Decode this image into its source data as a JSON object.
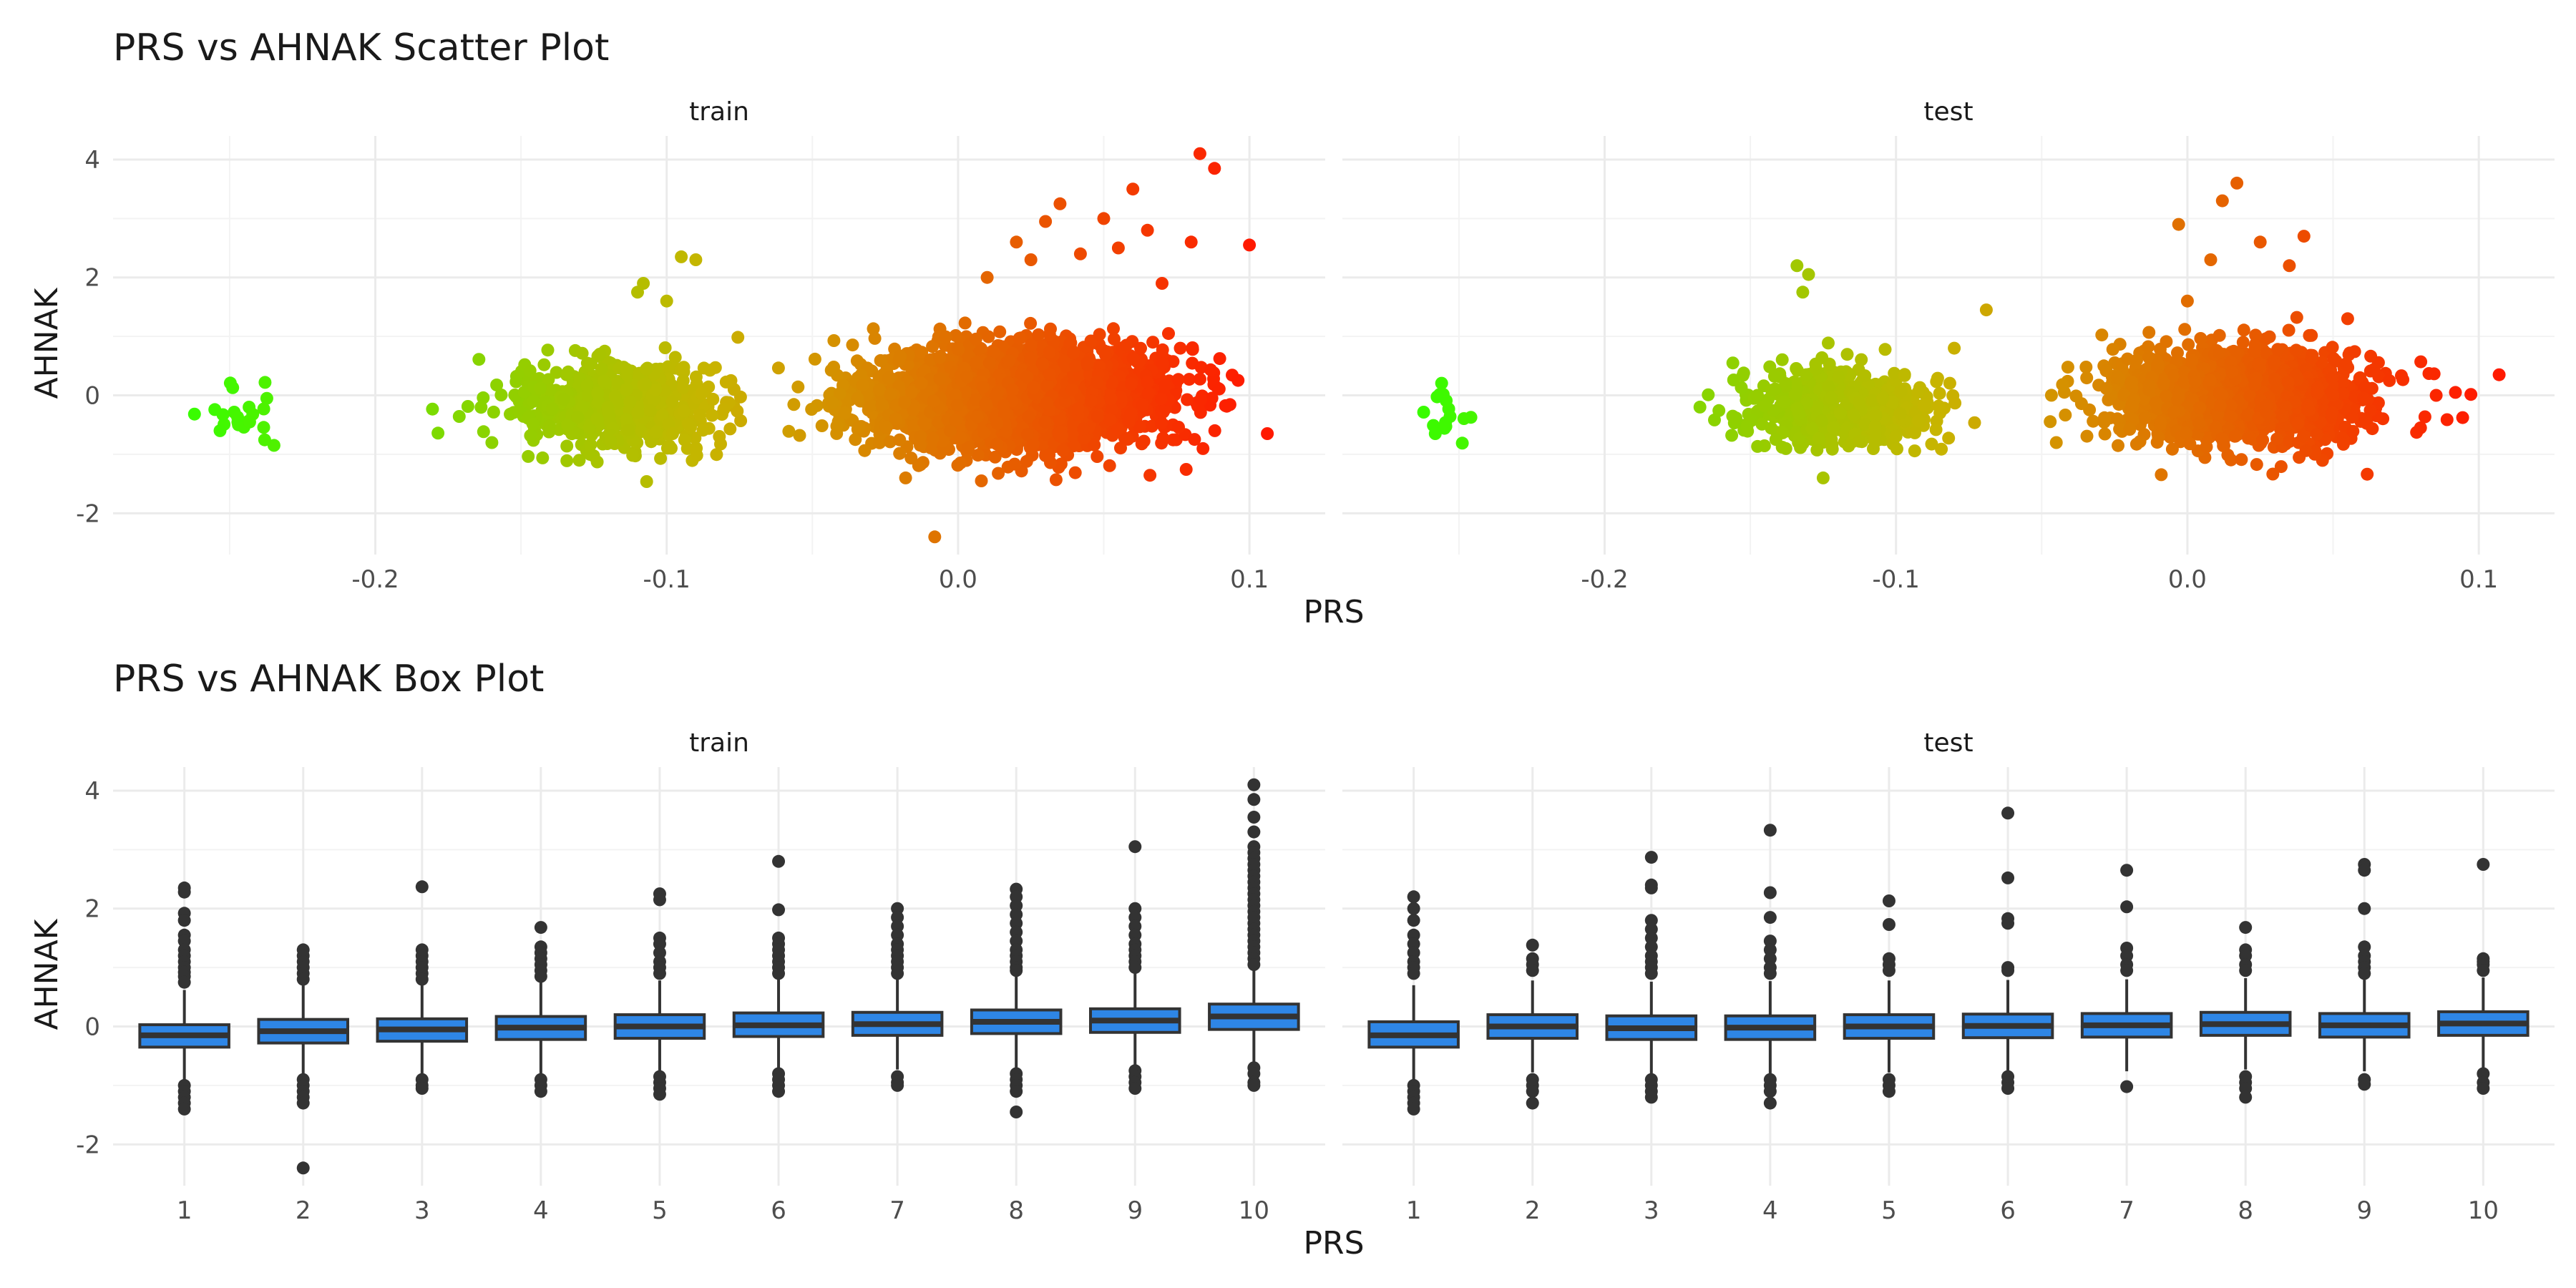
{
  "chart_data": [
    {
      "type": "scatter",
      "title": "PRS vs AHNAK Scatter Plot",
      "xlabel": "PRS",
      "ylabel": "AHNAK",
      "facets": [
        "train",
        "test"
      ],
      "xlim": [
        -0.29,
        0.126
      ],
      "ylim": [
        -2.7,
        4.4
      ],
      "x_ticks": [
        -0.2,
        -0.1,
        0.0,
        0.1
      ],
      "x_tick_labels": [
        "-0.2",
        "-0.1",
        "0.0",
        "0.1"
      ],
      "y_ticks": [
        -2,
        0,
        2,
        4
      ],
      "y_tick_labels": [
        "-2",
        "0",
        "2",
        "4"
      ],
      "color_scale": {
        "low": "#33ff00",
        "mid": "#c8b400",
        "high": "#ff1a00",
        "domain": [
          -0.27,
          0.1
        ]
      },
      "grid": true,
      "legend": "none",
      "panels": [
        {
          "facet": "train",
          "clusters": [
            {
              "x_center": -0.245,
              "x_spread": 0.008,
              "y_center": -0.25,
              "y_spread": 0.3,
              "n": 22
            },
            {
              "x_center": -0.118,
              "x_spread": 0.018,
              "y_center": -0.2,
              "y_spread": 0.35,
              "n": 700
            },
            {
              "x_center": 0.02,
              "x_spread": 0.025,
              "y_center": 0.0,
              "y_spread": 0.42,
              "n": 2600
            }
          ],
          "outliers": [
            [
              0.083,
              4.1
            ],
            [
              0.088,
              3.85
            ],
            [
              0.1,
              2.55
            ],
            [
              0.06,
              3.5
            ],
            [
              0.035,
              3.25
            ],
            [
              0.05,
              3.0
            ],
            [
              0.03,
              2.95
            ],
            [
              0.065,
              2.8
            ],
            [
              0.08,
              2.6
            ],
            [
              0.055,
              2.5
            ],
            [
              -0.095,
              2.35
            ],
            [
              -0.09,
              2.3
            ],
            [
              -0.108,
              1.9
            ],
            [
              -0.11,
              1.75
            ],
            [
              -0.1,
              1.6
            ],
            [
              0.025,
              2.3
            ],
            [
              0.01,
              2.0
            ],
            [
              -0.008,
              -2.4
            ],
            [
              0.008,
              -1.45
            ],
            [
              -0.018,
              -1.4
            ],
            [
              -0.16,
              -0.8
            ],
            [
              -0.13,
              -1.1
            ],
            [
              0.02,
              2.6
            ],
            [
              0.042,
              2.4
            ],
            [
              0.07,
              1.9
            ]
          ]
        },
        {
          "facet": "test",
          "clusters": [
            {
              "x_center": -0.253,
              "x_spread": 0.007,
              "y_center": -0.4,
              "y_spread": 0.25,
              "n": 16
            },
            {
              "x_center": -0.12,
              "x_spread": 0.017,
              "y_center": -0.2,
              "y_spread": 0.33,
              "n": 520
            },
            {
              "x_center": 0.017,
              "x_spread": 0.022,
              "y_center": 0.0,
              "y_spread": 0.38,
              "n": 1500
            }
          ],
          "outliers": [
            [
              -0.134,
              2.2
            ],
            [
              -0.13,
              2.05
            ],
            [
              -0.132,
              1.75
            ],
            [
              -0.069,
              1.45
            ],
            [
              0.017,
              3.6
            ],
            [
              0.012,
              3.3
            ],
            [
              -0.003,
              2.9
            ],
            [
              0.04,
              2.7
            ],
            [
              0.025,
              2.6
            ],
            [
              0.008,
              2.3
            ],
            [
              0.107,
              0.35
            ],
            [
              0.092,
              0.05
            ],
            [
              0.08,
              -0.55
            ],
            [
              -0.045,
              -0.8
            ],
            [
              -0.125,
              -1.4
            ],
            [
              0.035,
              2.2
            ],
            [
              0.0,
              1.6
            ],
            [
              -0.156,
              0.55
            ],
            [
              0.055,
              1.3
            ],
            [
              -0.08,
              0.8
            ]
          ]
        }
      ]
    },
    {
      "type": "box",
      "title": "PRS vs AHNAK Box Plot",
      "xlabel": "PRS",
      "ylabel": "AHNAK",
      "facets": [
        "train",
        "test"
      ],
      "categories": [
        "1",
        "2",
        "3",
        "4",
        "5",
        "6",
        "7",
        "8",
        "9",
        "10"
      ],
      "ylim": [
        -2.7,
        4.4
      ],
      "y_ticks": [
        -2,
        0,
        2,
        4
      ],
      "y_tick_labels": [
        "-2",
        "0",
        "2",
        "4"
      ],
      "box_fill": "#2e86e6",
      "box_stroke": "#333333",
      "outlier_color": "#333333",
      "grid": true,
      "legend": "none",
      "panels": [
        {
          "facet": "train",
          "boxes": [
            {
              "category": "1",
              "q1": -0.35,
              "median": -0.15,
              "q3": 0.03,
              "whisker_low": -0.95,
              "whisker_high": 0.62,
              "outliers": [
                2.35,
                2.28,
                1.92,
                1.8,
                1.55,
                1.45,
                1.3,
                1.2,
                1.1,
                1.0,
                0.92,
                0.85,
                0.75,
                -1.0,
                -1.1,
                -1.2,
                -1.3,
                -1.4
              ]
            },
            {
              "category": "2",
              "q1": -0.28,
              "median": -0.08,
              "q3": 0.12,
              "whisker_low": -0.85,
              "whisker_high": 0.72,
              "outliers": [
                1.3,
                1.2,
                1.1,
                1.0,
                0.9,
                0.8,
                -0.9,
                -1.0,
                -1.1,
                -1.2,
                -1.3,
                -2.4
              ]
            },
            {
              "category": "3",
              "q1": -0.25,
              "median": -0.05,
              "q3": 0.13,
              "whisker_low": -0.82,
              "whisker_high": 0.72,
              "outliers": [
                2.37,
                1.3,
                1.2,
                1.1,
                1.0,
                0.9,
                0.8,
                -0.9,
                -1.0,
                -1.05
              ]
            },
            {
              "category": "4",
              "q1": -0.22,
              "median": -0.02,
              "q3": 0.17,
              "whisker_low": -0.8,
              "whisker_high": 0.75,
              "outliers": [
                1.68,
                1.35,
                1.25,
                1.15,
                1.05,
                0.95,
                0.85,
                -0.9,
                -1.0,
                -1.1
              ]
            },
            {
              "category": "5",
              "q1": -0.2,
              "median": 0.0,
              "q3": 0.2,
              "whisker_low": -0.78,
              "whisker_high": 0.78,
              "outliers": [
                2.25,
                2.15,
                1.5,
                1.4,
                1.25,
                1.1,
                1.0,
                0.9,
                -0.85,
                -0.95,
                -1.05,
                -1.15
              ]
            },
            {
              "category": "6",
              "q1": -0.17,
              "median": 0.02,
              "q3": 0.23,
              "whisker_low": -0.75,
              "whisker_high": 0.8,
              "outliers": [
                2.8,
                1.98,
                1.5,
                1.4,
                1.3,
                1.2,
                1.1,
                1.0,
                0.9,
                -0.8,
                -0.9,
                -1.0,
                -1.1
              ]
            },
            {
              "category": "7",
              "q1": -0.15,
              "median": 0.04,
              "q3": 0.24,
              "whisker_low": -0.73,
              "whisker_high": 0.82,
              "outliers": [
                2.0,
                1.85,
                1.7,
                1.55,
                1.4,
                1.3,
                1.2,
                1.1,
                1.0,
                0.9,
                -0.85,
                -0.95,
                -1.0
              ]
            },
            {
              "category": "8",
              "q1": -0.12,
              "median": 0.08,
              "q3": 0.28,
              "whisker_low": -0.7,
              "whisker_high": 0.86,
              "outliers": [
                2.33,
                2.2,
                2.05,
                1.9,
                1.75,
                1.6,
                1.45,
                1.3,
                1.2,
                1.1,
                1.0,
                0.95,
                -0.8,
                -0.9,
                -1.0,
                -1.1,
                -1.45
              ]
            },
            {
              "category": "9",
              "q1": -0.1,
              "median": 0.1,
              "q3": 0.3,
              "whisker_low": -0.68,
              "whisker_high": 0.9,
              "outliers": [
                3.05,
                2.0,
                1.85,
                1.7,
                1.55,
                1.4,
                1.3,
                1.2,
                1.1,
                1.0,
                -0.75,
                -0.85,
                -0.95,
                -1.05
              ]
            },
            {
              "category": "10",
              "q1": -0.05,
              "median": 0.17,
              "q3": 0.38,
              "whisker_low": -0.6,
              "whisker_high": 1.0,
              "outliers": [
                4.1,
                3.85,
                3.55,
                3.3,
                3.05,
                2.95,
                2.85,
                2.75,
                2.65,
                2.55,
                2.45,
                2.35,
                2.25,
                2.15,
                2.05,
                1.95,
                1.85,
                1.75,
                1.65,
                1.55,
                1.45,
                1.35,
                1.25,
                1.15,
                1.05,
                -0.7,
                -0.8,
                -0.95,
                -1.0
              ]
            }
          ]
        },
        {
          "facet": "test",
          "boxes": [
            {
              "category": "1",
              "q1": -0.35,
              "median": -0.15,
              "q3": 0.08,
              "whisker_low": -0.95,
              "whisker_high": 0.7,
              "outliers": [
                2.2,
                2.0,
                1.8,
                1.55,
                1.4,
                1.25,
                1.1,
                1.0,
                0.9,
                -1.0,
                -1.1,
                -1.2,
                -1.3,
                -1.4
              ]
            },
            {
              "category": "2",
              "q1": -0.2,
              "median": 0.0,
              "q3": 0.2,
              "whisker_low": -0.78,
              "whisker_high": 0.78,
              "outliers": [
                1.38,
                1.15,
                1.05,
                0.95,
                -0.9,
                -1.0,
                -1.1,
                -1.3
              ]
            },
            {
              "category": "3",
              "q1": -0.22,
              "median": -0.03,
              "q3": 0.18,
              "whisker_low": -0.8,
              "whisker_high": 0.76,
              "outliers": [
                2.87,
                2.4,
                2.35,
                1.8,
                1.65,
                1.5,
                1.35,
                1.2,
                1.1,
                1.0,
                0.9,
                -0.9,
                -1.0,
                -1.1,
                -1.2
              ]
            },
            {
              "category": "4",
              "q1": -0.22,
              "median": -0.02,
              "q3": 0.18,
              "whisker_low": -0.8,
              "whisker_high": 0.77,
              "outliers": [
                3.33,
                2.27,
                1.85,
                1.45,
                1.3,
                1.15,
                1.0,
                0.9,
                -0.9,
                -1.0,
                -1.1,
                -1.3
              ]
            },
            {
              "category": "5",
              "q1": -0.2,
              "median": 0.0,
              "q3": 0.2,
              "whisker_low": -0.78,
              "whisker_high": 0.78,
              "outliers": [
                2.13,
                1.73,
                1.15,
                1.05,
                0.95,
                -0.9,
                -1.0,
                -1.1
              ]
            },
            {
              "category": "6",
              "q1": -0.19,
              "median": 0.01,
              "q3": 0.21,
              "whisker_low": -0.77,
              "whisker_high": 0.79,
              "outliers": [
                3.62,
                2.52,
                1.83,
                1.75,
                1.0,
                0.95,
                -0.85,
                -0.95,
                -1.05
              ]
            },
            {
              "category": "7",
              "q1": -0.18,
              "median": 0.02,
              "q3": 0.22,
              "whisker_low": -0.76,
              "whisker_high": 0.8,
              "outliers": [
                2.65,
                2.03,
                1.33,
                1.2,
                1.05,
                0.95,
                -1.02
              ]
            },
            {
              "category": "8",
              "q1": -0.15,
              "median": 0.04,
              "q3": 0.24,
              "whisker_low": -0.73,
              "whisker_high": 0.82,
              "outliers": [
                1.68,
                1.3,
                1.2,
                1.05,
                0.95,
                -0.85,
                -0.95,
                -1.05,
                -1.2
              ]
            },
            {
              "category": "9",
              "q1": -0.18,
              "median": 0.02,
              "q3": 0.22,
              "whisker_low": -0.76,
              "whisker_high": 0.8,
              "outliers": [
                2.75,
                2.65,
                2.0,
                1.35,
                1.2,
                1.1,
                1.0,
                0.9,
                -0.9,
                -0.98
              ]
            },
            {
              "category": "10",
              "q1": -0.15,
              "median": 0.05,
              "q3": 0.25,
              "whisker_low": -0.73,
              "whisker_high": 0.83,
              "outliers": [
                2.75,
                1.15,
                1.1,
                1.05,
                0.95,
                -0.8,
                -0.95,
                -1.05
              ]
            }
          ]
        }
      ]
    }
  ]
}
